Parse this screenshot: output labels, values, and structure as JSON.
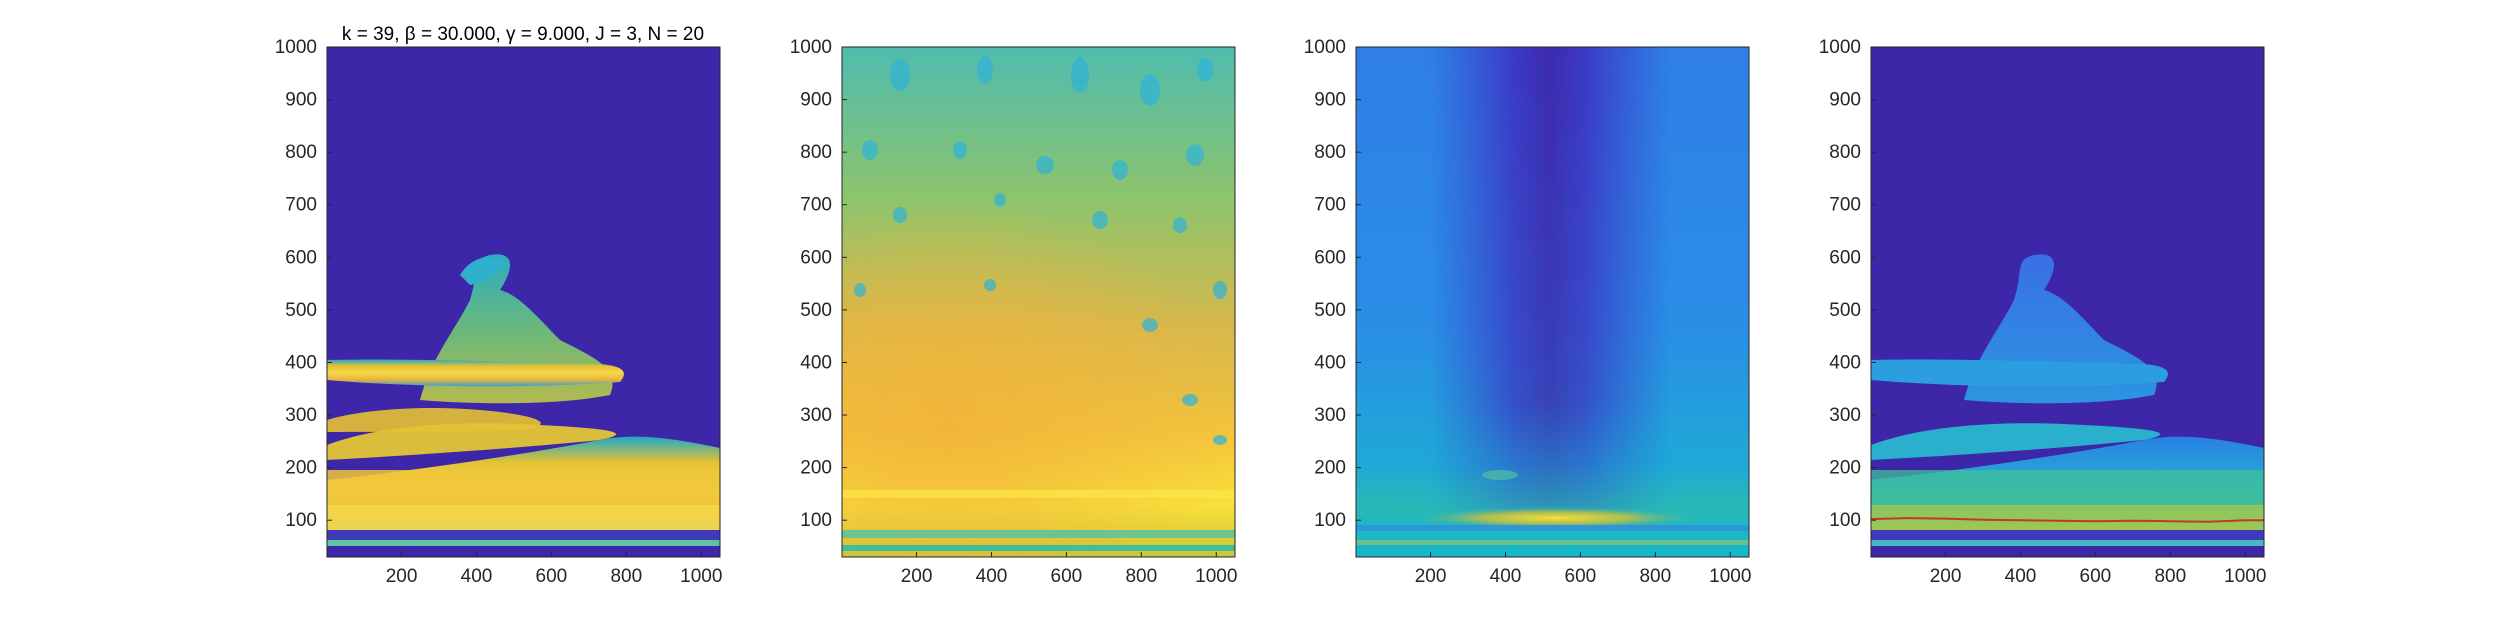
{
  "chart_data": [
    {
      "type": "heatmap",
      "panel": "scalogram-thresholded",
      "title": "k = 39, β = 30.000, γ = 9.000, J = 3, N = 20",
      "xlabel": "",
      "ylabel": "",
      "xlim": [
        1,
        1050
      ],
      "ylim": [
        30,
        1000
      ],
      "xticks": [
        200,
        400,
        600,
        800,
        1000
      ],
      "yticks": [
        100,
        200,
        300,
        400,
        500,
        600,
        700,
        800,
        900,
        1000
      ],
      "colormap": "parula",
      "background_color": "#3e26a8",
      "grid": false,
      "bands": [
        {
          "y": [
            340,
            385
          ],
          "x": [
            0,
            790
          ],
          "level": 0.85
        },
        {
          "y": [
            150,
            300
          ],
          "x": [
            0,
            1050
          ],
          "level": 0.8
        },
        {
          "y": [
            80,
            150
          ],
          "x": [
            0,
            1050
          ],
          "level": 0.9
        },
        {
          "y": [
            380,
            600
          ],
          "x": [
            150,
            520
          ],
          "level": 0.55
        }
      ]
    },
    {
      "type": "heatmap",
      "panel": "scalogram-full",
      "title": "",
      "xlim": [
        1,
        1050
      ],
      "ylim": [
        30,
        1000
      ],
      "xticks": [
        200,
        400,
        600,
        800,
        1000
      ],
      "yticks": [
        100,
        200,
        300,
        400,
        500,
        600,
        700,
        800,
        900,
        1000
      ],
      "colormap": "parula",
      "grid": false,
      "bands": [
        {
          "y": [
            80,
            260
          ],
          "x": [
            0,
            1050
          ],
          "level": 0.95
        },
        {
          "y": [
            260,
            650
          ],
          "x": [
            0,
            900
          ],
          "level": 0.75
        },
        {
          "y": [
            650,
            1000
          ],
          "x": [
            0,
            1050
          ],
          "level": 0.5
        }
      ]
    },
    {
      "type": "heatmap",
      "panel": "phase-or-difference",
      "title": "",
      "xlim": [
        1,
        1050
      ],
      "ylim": [
        30,
        1000
      ],
      "xticks": [
        200,
        400,
        600,
        800,
        1000
      ],
      "yticks": [
        100,
        200,
        300,
        400,
        500,
        600,
        700,
        800,
        900,
        1000
      ],
      "colormap": "parula",
      "grid": false,
      "bands": [
        {
          "y": [
            90,
            115
          ],
          "x": [
            200,
            900
          ],
          "level": 0.9
        },
        {
          "y": [
            30,
            180
          ],
          "x": [
            0,
            1050
          ],
          "level": 0.55
        },
        {
          "y": [
            180,
            1000
          ],
          "x": [
            0,
            1050
          ],
          "level": 0.3
        }
      ]
    },
    {
      "type": "heatmap",
      "panel": "scalogram-with-ridge",
      "title": "",
      "xlim": [
        1,
        1050
      ],
      "ylim": [
        30,
        1000
      ],
      "xticks": [
        200,
        400,
        600,
        800,
        1000
      ],
      "yticks": [
        100,
        200,
        300,
        400,
        500,
        600,
        700,
        800,
        900,
        1000
      ],
      "colormap": "parula",
      "background_color": "#3e26a8",
      "grid": false,
      "ridge": {
        "color": "#c0392b",
        "x": [
          1,
          100,
          200,
          300,
          400,
          500,
          600,
          700,
          800,
          900,
          1000,
          1050
        ],
        "y": [
          102,
          104,
          103,
          101,
          100,
          99,
          98,
          99,
          98,
          97,
          100,
          100
        ]
      }
    }
  ]
}
